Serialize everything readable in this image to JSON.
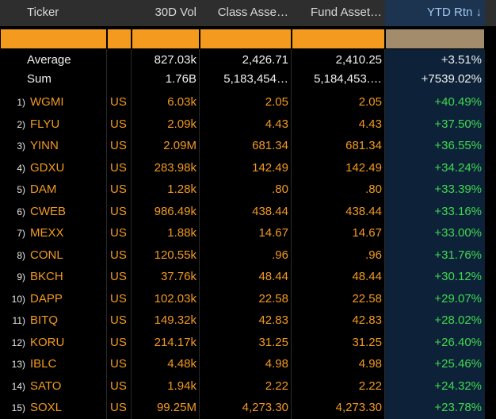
{
  "table": {
    "headers": [
      "Ticker",
      "",
      "30D Vol",
      "Class Asse…",
      "Fund Asset…",
      "YTD Rtn ↓"
    ],
    "average": [
      "Average",
      "",
      "827.03k",
      "2,426.71",
      "2,410.25",
      "+3.51%"
    ],
    "sum": [
      "Sum",
      "",
      "1.76B",
      "5,183,454…",
      "5,184,453.…",
      "+7539.02%"
    ],
    "rows": [
      [
        "1)",
        "WGMI",
        "US",
        "6.03k",
        "2.05",
        "2.05",
        "+40.49%"
      ],
      [
        "2)",
        "FLYU",
        "US",
        "2.09k",
        "4.43",
        "4.43",
        "+37.50%"
      ],
      [
        "3)",
        "YINN",
        "US",
        "2.09M",
        "681.34",
        "681.34",
        "+36.55%"
      ],
      [
        "4)",
        "GDXU",
        "US",
        "283.98k",
        "142.49",
        "142.49",
        "+34.24%"
      ],
      [
        "5)",
        "DAM",
        "US",
        "1.28k",
        ".80",
        ".80",
        "+33.39%"
      ],
      [
        "6)",
        "CWEB",
        "US",
        "986.49k",
        "438.44",
        "438.44",
        "+33.16%"
      ],
      [
        "7)",
        "MEXX",
        "US",
        "1.88k",
        "14.67",
        "14.67",
        "+33.00%"
      ],
      [
        "8)",
        "CONL",
        "US",
        "120.55k",
        ".96",
        ".96",
        "+31.76%"
      ],
      [
        "9)",
        "BKCH",
        "US",
        "37.76k",
        "48.44",
        "48.44",
        "+30.12%"
      ],
      [
        "10)",
        "DAPP",
        "US",
        "102.03k",
        "22.58",
        "22.58",
        "+29.07%"
      ],
      [
        "11)",
        "BITQ",
        "US",
        "149.32k",
        "42.83",
        "42.83",
        "+28.02%"
      ],
      [
        "12)",
        "KORU",
        "US",
        "214.17k",
        "31.25",
        "31.25",
        "+26.40%"
      ],
      [
        "13)",
        "IBLC",
        "US",
        "4.48k",
        "4.98",
        "4.98",
        "+25.46%"
      ],
      [
        "14)",
        "SATO",
        "US",
        "1.94k",
        "2.22",
        "2.22",
        "+24.32%"
      ],
      [
        "15)",
        "SOXL",
        "US",
        "99.25M",
        "4,273.30",
        "4,273.30",
        "+23.78%"
      ]
    ]
  }
}
